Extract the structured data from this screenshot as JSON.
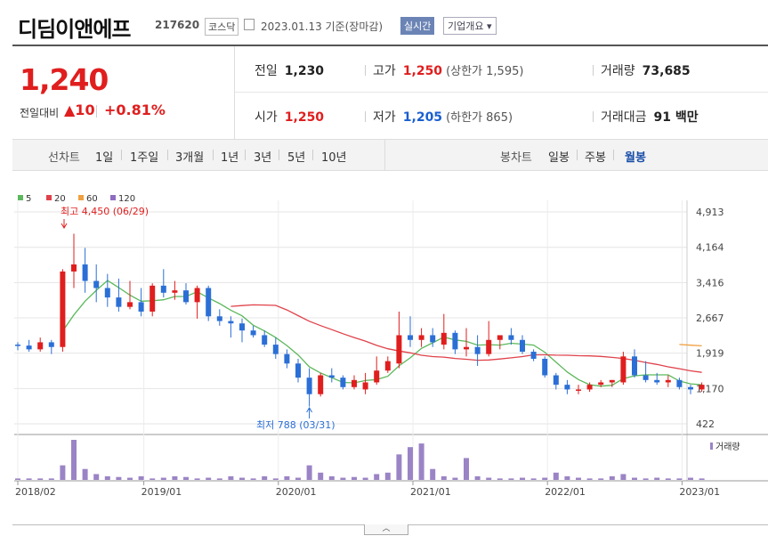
{
  "header": {
    "name": "디딤이앤에프",
    "code": "217620",
    "market": "코스닥",
    "date": "2023.01.13 기준(장마감)",
    "realtime_button": "실시간",
    "company_button": "기업개요"
  },
  "quote": {
    "price": "1,240",
    "change_label": "전일대비",
    "change": "▲10",
    "change_pct": "+0.81%"
  },
  "stats": {
    "prev_close": {
      "label": "전일",
      "value": "1,230"
    },
    "high": {
      "label": "고가",
      "value": "1,250",
      "sub": "(상한가 1,595)"
    },
    "volume": {
      "label": "거래량",
      "value": "73,685"
    },
    "open": {
      "label": "시가",
      "value": "1,250"
    },
    "low": {
      "label": "저가",
      "value": "1,205",
      "sub": "(하한가 865)"
    },
    "amount": {
      "label": "거래대금",
      "value": "91 백만"
    }
  },
  "tabs": {
    "line_label": "선차트",
    "line": [
      "1일",
      "1주일",
      "3개월",
      "1년",
      "3년",
      "5년",
      "10년"
    ],
    "candle_label": "봉차트",
    "candle": [
      "일봉",
      "주봉",
      "월봉"
    ],
    "selected": "월봉"
  },
  "chart_data": {
    "type": "candlestick",
    "interval": "monthly",
    "legend": [
      "5",
      "20",
      "60",
      "120"
    ],
    "colors": {
      "ma5": "#5cb85c",
      "ma20": "#e0424b",
      "ma60": "#f0a040",
      "ma120": "#8e6cc0",
      "up": "#e01e1e",
      "down": "#2b6fd6",
      "volume": "#9b84c6"
    },
    "ylim": [
      422,
      4913
    ],
    "y_ticks": [
      "4,913",
      "4,164",
      "3,416",
      "2,667",
      "1,919",
      "1,170",
      "422"
    ],
    "x_ticks": [
      "2018/02",
      "2019/01",
      "2020/01",
      "2021/01",
      "2022/01",
      "2023/01"
    ],
    "high_annotation": "최고 4,450 (06/29)",
    "low_annotation": "최저 788 (03/31)",
    "volume_label": "거래량",
    "candles": [
      [
        2100,
        2150,
        1980,
        2080
      ],
      [
        2080,
        2200,
        1950,
        2000
      ],
      [
        2000,
        2250,
        1950,
        2150
      ],
      [
        2150,
        2200,
        1900,
        2050
      ],
      [
        2050,
        3700,
        1950,
        3650
      ],
      [
        3650,
        4450,
        3300,
        3800
      ],
      [
        3800,
        4150,
        3200,
        3450
      ],
      [
        3450,
        3800,
        3000,
        3300
      ],
      [
        3300,
        3600,
        2900,
        3100
      ],
      [
        3100,
        3500,
        2800,
        2900
      ],
      [
        2900,
        3450,
        2850,
        3000
      ],
      [
        3000,
        3300,
        2700,
        2800
      ],
      [
        2800,
        3400,
        2700,
        3350
      ],
      [
        3350,
        3700,
        3100,
        3200
      ],
      [
        3200,
        3450,
        3050,
        3250
      ],
      [
        3250,
        3400,
        2950,
        3000
      ],
      [
        3000,
        3350,
        2650,
        3300
      ],
      [
        3300,
        3350,
        2600,
        2700
      ],
      [
        2700,
        2850,
        2500,
        2600
      ],
      [
        2600,
        2700,
        2250,
        2550
      ],
      [
        2550,
        2650,
        2150,
        2400
      ],
      [
        2400,
        2500,
        2250,
        2300
      ],
      [
        2300,
        2400,
        2050,
        2100
      ],
      [
        2100,
        2250,
        1800,
        1900
      ],
      [
        1900,
        2000,
        1600,
        1700
      ],
      [
        1700,
        1800,
        1300,
        1400
      ],
      [
        1400,
        1600,
        788,
        1050
      ],
      [
        1050,
        1500,
        1000,
        1450
      ],
      [
        1450,
        1600,
        1300,
        1400
      ],
      [
        1400,
        1450,
        1150,
        1200
      ],
      [
        1200,
        1450,
        1150,
        1350
      ],
      [
        1150,
        1500,
        1050,
        1300
      ],
      [
        1300,
        1850,
        1250,
        1550
      ],
      [
        1550,
        1850,
        1500,
        1750
      ],
      [
        1700,
        2800,
        1600,
        2300
      ],
      [
        2300,
        2700,
        2050,
        2200
      ],
      [
        2200,
        2450,
        2050,
        2300
      ],
      [
        2300,
        2450,
        2050,
        2150
      ],
      [
        2100,
        2750,
        2000,
        2350
      ],
      [
        2350,
        2400,
        1900,
        2000
      ],
      [
        2000,
        2450,
        1850,
        2050
      ],
      [
        2050,
        2300,
        1650,
        1900
      ],
      [
        1900,
        2600,
        1850,
        2200
      ],
      [
        2200,
        2300,
        2000,
        2300
      ],
      [
        2300,
        2450,
        2100,
        2200
      ],
      [
        2200,
        2300,
        1900,
        1950
      ],
      [
        1950,
        2000,
        1750,
        1800
      ],
      [
        1800,
        1850,
        1400,
        1450
      ],
      [
        1450,
        1500,
        1150,
        1250
      ],
      [
        1250,
        1350,
        1050,
        1150
      ],
      [
        1150,
        1250,
        1050,
        1150
      ],
      [
        1150,
        1300,
        1100,
        1250
      ],
      [
        1250,
        1350,
        1200,
        1300
      ],
      [
        1300,
        1350,
        1200,
        1350
      ],
      [
        1300,
        1950,
        1250,
        1850
      ],
      [
        1850,
        2000,
        1400,
        1450
      ],
      [
        1450,
        1750,
        1300,
        1350
      ],
      [
        1350,
        1500,
        1250,
        1300
      ],
      [
        1300,
        1450,
        1200,
        1350
      ],
      [
        1350,
        1400,
        1150,
        1200
      ],
      [
        1200,
        1250,
        1050,
        1150
      ],
      [
        1150,
        1300,
        1100,
        1250
      ]
    ],
    "volume": [
      2,
      2,
      2,
      2,
      20,
      55,
      15,
      8,
      5,
      4,
      3,
      5,
      2,
      3,
      5,
      4,
      2,
      3,
      2,
      5,
      3,
      2,
      5,
      2,
      5,
      3,
      20,
      10,
      5,
      3,
      4,
      3,
      8,
      10,
      35,
      45,
      50,
      15,
      5,
      3,
      30,
      5,
      3,
      2,
      2,
      3,
      2,
      3,
      10,
      5,
      3,
      2,
      2,
      5,
      8,
      3,
      2,
      3,
      2,
      2,
      3,
      2
    ]
  },
  "page_toggle": "︿"
}
